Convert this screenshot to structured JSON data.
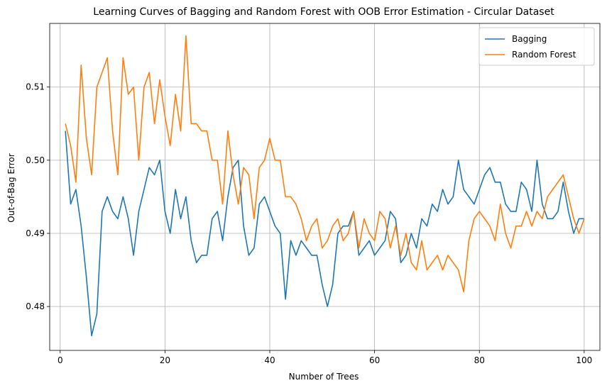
{
  "chart_data": {
    "type": "line",
    "title": "Learning Curves of Bagging and Random Forest with OOB Error Estimation - Circular Dataset",
    "xlabel": "Number of Trees",
    "ylabel": "Out-of-Bag Error",
    "xlim": [
      -2,
      103
    ],
    "ylim": [
      0.474,
      0.5187
    ],
    "xticks": [
      0,
      20,
      40,
      60,
      80,
      100
    ],
    "yticks": [
      0.48,
      0.49,
      0.5,
      0.51
    ],
    "xtick_labels": [
      "0",
      "20",
      "40",
      "60",
      "80",
      "100"
    ],
    "ytick_labels": [
      "0.48",
      "0.49",
      "0.50",
      "0.51"
    ],
    "grid": true,
    "legend_position": "top-right",
    "series": [
      {
        "name": "Bagging",
        "color": "#1f77b4",
        "x": [
          1,
          2,
          3,
          4,
          5,
          6,
          7,
          8,
          9,
          10,
          11,
          12,
          13,
          14,
          15,
          16,
          17,
          18,
          19,
          20,
          21,
          22,
          23,
          24,
          25,
          26,
          27,
          28,
          29,
          30,
          31,
          32,
          33,
          34,
          35,
          36,
          37,
          38,
          39,
          40,
          41,
          42,
          43,
          44,
          45,
          46,
          47,
          48,
          49,
          50,
          51,
          52,
          53,
          54,
          55,
          56,
          57,
          58,
          59,
          60,
          61,
          62,
          63,
          64,
          65,
          66,
          67,
          68,
          69,
          70,
          71,
          72,
          73,
          74,
          75,
          76,
          77,
          78,
          79,
          80,
          81,
          82,
          83,
          84,
          85,
          86,
          87,
          88,
          89,
          90,
          91,
          92,
          93,
          94,
          95,
          96,
          97,
          98,
          99,
          100
        ],
        "values": [
          0.504,
          0.494,
          0.496,
          0.491,
          0.484,
          0.476,
          0.479,
          0.493,
          0.495,
          0.493,
          0.492,
          0.495,
          0.492,
          0.487,
          0.493,
          0.496,
          0.499,
          0.498,
          0.5,
          0.493,
          0.49,
          0.496,
          0.492,
          0.495,
          0.489,
          0.486,
          0.487,
          0.487,
          0.492,
          0.493,
          0.489,
          0.495,
          0.499,
          0.5,
          0.491,
          0.487,
          0.488,
          0.494,
          0.495,
          0.493,
          0.491,
          0.49,
          0.481,
          0.489,
          0.487,
          0.489,
          0.488,
          0.487,
          0.487,
          0.483,
          0.48,
          0.483,
          0.49,
          0.491,
          0.491,
          0.493,
          0.487,
          0.488,
          0.489,
          0.487,
          0.488,
          0.489,
          0.493,
          0.492,
          0.486,
          0.487,
          0.49,
          0.488,
          0.492,
          0.491,
          0.494,
          0.493,
          0.496,
          0.494,
          0.495,
          0.5,
          0.496,
          0.495,
          0.494,
          0.496,
          0.498,
          0.499,
          0.497,
          0.497,
          0.494,
          0.493,
          0.493,
          0.497,
          0.496,
          0.493,
          0.5,
          0.494,
          0.492,
          0.492,
          0.493,
          0.497,
          0.493,
          0.49,
          0.492,
          0.492
        ]
      },
      {
        "name": "Random Forest",
        "color": "#ff7f0e",
        "x": [
          1,
          2,
          3,
          4,
          5,
          6,
          7,
          8,
          9,
          10,
          11,
          12,
          13,
          14,
          15,
          16,
          17,
          18,
          19,
          20,
          21,
          22,
          23,
          24,
          25,
          26,
          27,
          28,
          29,
          30,
          31,
          32,
          33,
          34,
          35,
          36,
          37,
          38,
          39,
          40,
          41,
          42,
          43,
          44,
          45,
          46,
          47,
          48,
          49,
          50,
          51,
          52,
          53,
          54,
          55,
          56,
          57,
          58,
          59,
          60,
          61,
          62,
          63,
          64,
          65,
          66,
          67,
          68,
          69,
          70,
          71,
          72,
          73,
          74,
          75,
          76,
          77,
          78,
          79,
          80,
          81,
          82,
          83,
          84,
          85,
          86,
          87,
          88,
          89,
          90,
          91,
          92,
          93,
          94,
          95,
          96,
          97,
          98,
          99,
          100
        ],
        "values": [
          0.505,
          0.502,
          0.497,
          0.513,
          0.503,
          0.498,
          0.51,
          0.512,
          0.514,
          0.504,
          0.498,
          0.514,
          0.509,
          0.51,
          0.5,
          0.51,
          0.512,
          0.505,
          0.511,
          0.506,
          0.502,
          0.509,
          0.504,
          0.517,
          0.505,
          0.505,
          0.504,
          0.504,
          0.5,
          0.5,
          0.494,
          0.504,
          0.498,
          0.494,
          0.499,
          0.498,
          0.492,
          0.499,
          0.5,
          0.503,
          0.5,
          0.5,
          0.495,
          0.495,
          0.494,
          0.492,
          0.489,
          0.491,
          0.492,
          0.488,
          0.489,
          0.491,
          0.492,
          0.489,
          0.49,
          0.493,
          0.488,
          0.492,
          0.49,
          0.489,
          0.493,
          0.492,
          0.488,
          0.491,
          0.487,
          0.49,
          0.486,
          0.485,
          0.489,
          0.485,
          0.486,
          0.487,
          0.485,
          0.487,
          0.486,
          0.485,
          0.482,
          0.489,
          0.492,
          0.493,
          0.492,
          0.491,
          0.489,
          0.494,
          0.49,
          0.488,
          0.491,
          0.491,
          0.493,
          0.491,
          0.493,
          0.492,
          0.495,
          0.496,
          0.497,
          0.498,
          0.495,
          0.492,
          0.49,
          0.492
        ]
      }
    ]
  }
}
